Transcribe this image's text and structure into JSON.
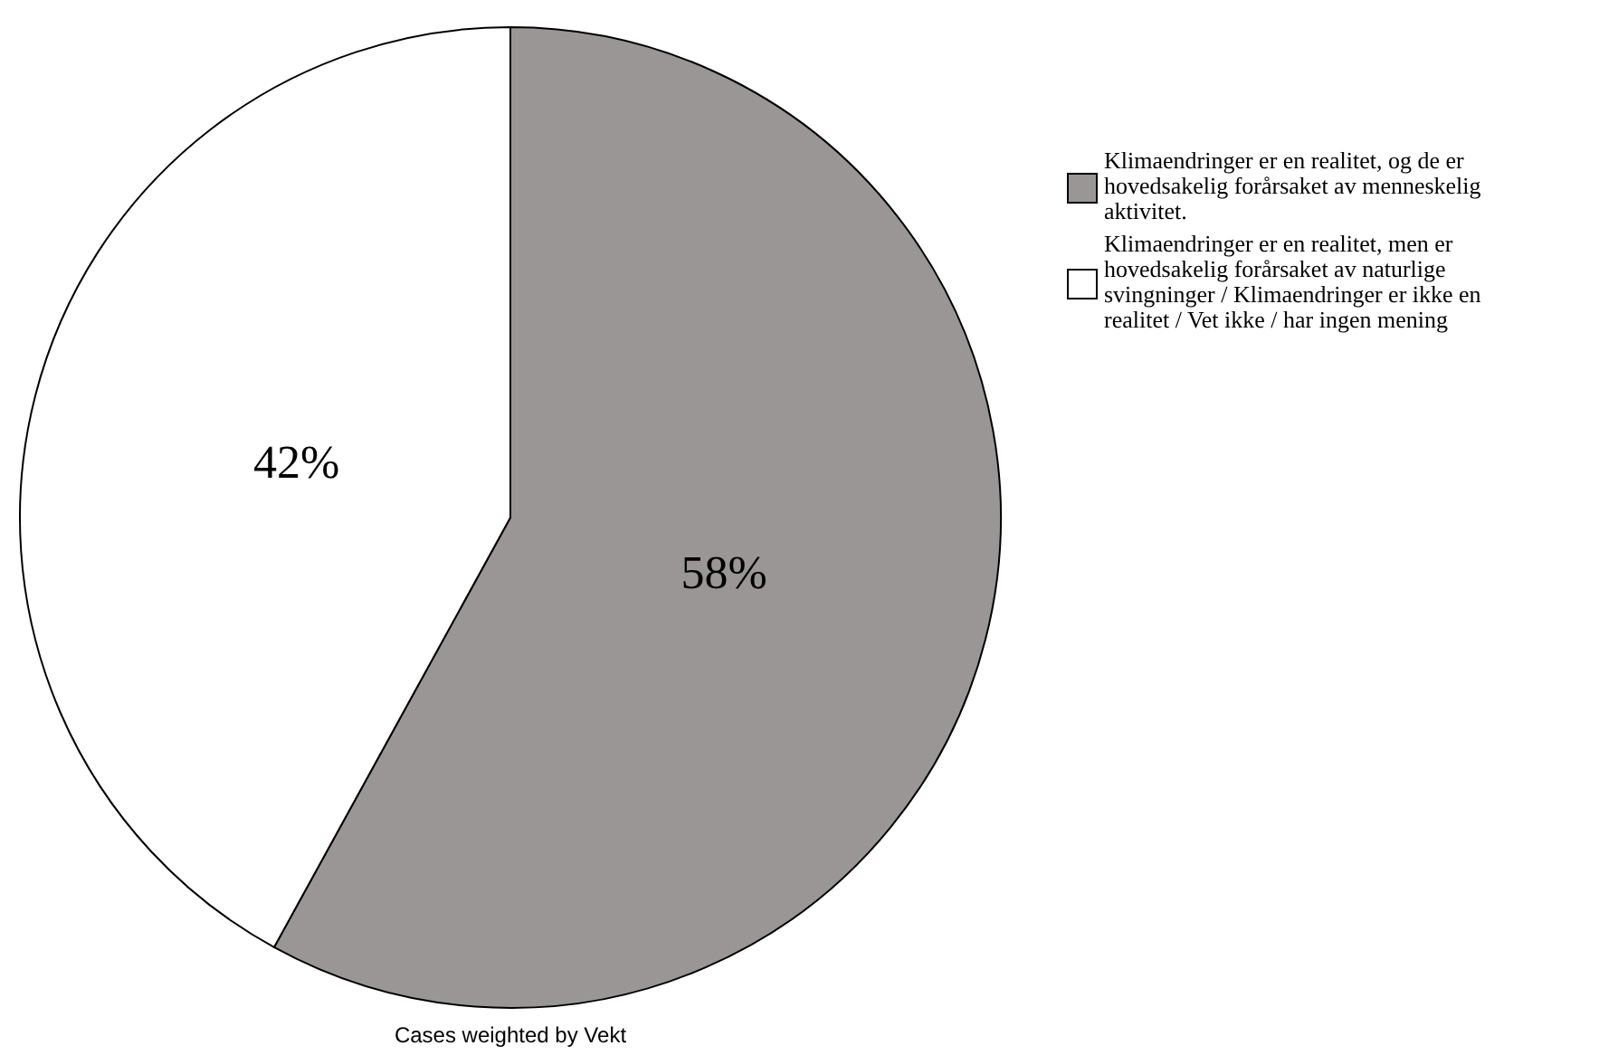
{
  "chart_data": {
    "type": "pie",
    "categories": [
      "Klimaendringer er en realitet, og de er hovedsakelig forårsaket av menneskelig aktivitet.",
      "Klimaendringer er en realitet, men er hovedsakelig forårsaket av naturlige svingninger / Klimaendringer er ikke en realitet / Vet ikke / har ingen mening"
    ],
    "values": [
      58,
      42
    ],
    "colors": [
      "#9a9696",
      "#ffffff"
    ],
    "value_labels": [
      "58%",
      "42%"
    ],
    "legend": "top right",
    "annotations": [
      "Cases weighted by Vekt"
    ]
  }
}
